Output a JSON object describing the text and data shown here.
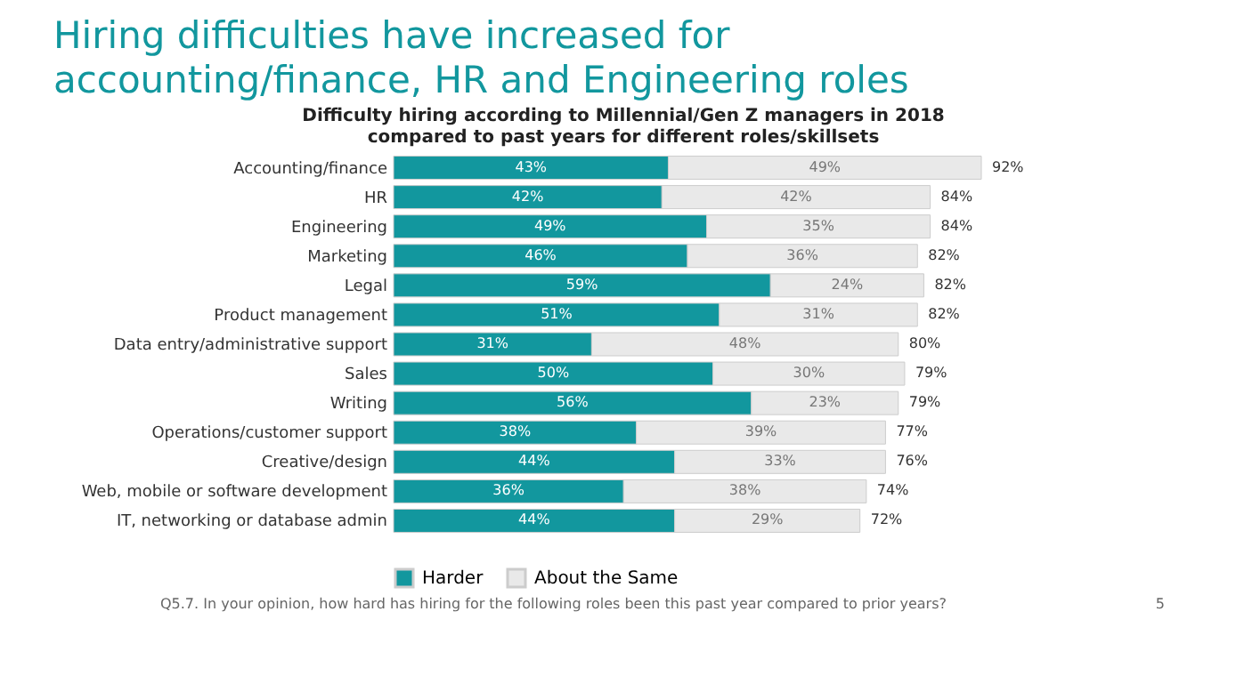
{
  "chart_data": {
    "type": "bar",
    "orientation": "horizontal",
    "stacked": true,
    "title": "Hiring difficulties have increased for accounting/finance, HR and Engineering roles",
    "subtitle": "Difficulty hiring according to Millennial/Gen Z managers in 2018 compared to past years for different roles/skillsets",
    "categories": [
      "Accounting/finance",
      "HR",
      "Engineering",
      "Marketing",
      "Legal",
      "Product management",
      "Data entry/administrative support",
      "Sales",
      "Writing",
      "Operations/customer support",
      "Creative/design",
      "Web, mobile or software development",
      "IT, networking or database admin"
    ],
    "series": [
      {
        "name": "Harder",
        "color": "#12979e",
        "values": [
          43,
          42,
          49,
          46,
          59,
          51,
          31,
          50,
          56,
          38,
          44,
          36,
          44
        ],
        "value_labels": [
          "43%",
          "42%",
          "49%",
          "46%",
          "59%",
          "51%",
          "31%",
          "50%",
          "56%",
          "38%",
          "44%",
          "36%",
          "44%"
        ]
      },
      {
        "name": "About the Same",
        "color": "#e9e9e9",
        "values": [
          49,
          42,
          35,
          36,
          24,
          31,
          48,
          30,
          23,
          39,
          33,
          38,
          29
        ],
        "value_labels": [
          "49%",
          "42%",
          "35%",
          "36%",
          "24%",
          "31%",
          "48%",
          "30%",
          "23%",
          "39%",
          "33%",
          "38%",
          "29%"
        ]
      }
    ],
    "totals": [
      "92%",
      "84%",
      "84%",
      "82%",
      "82%",
      "82%",
      "80%",
      "79%",
      "79%",
      "77%",
      "76%",
      "74%",
      "72%"
    ],
    "legend": "bottom",
    "annotations": [
      "Q5.7. In your opinion, how hard has hiring for the following roles been this past year compared to prior years?",
      "5"
    ]
  }
}
